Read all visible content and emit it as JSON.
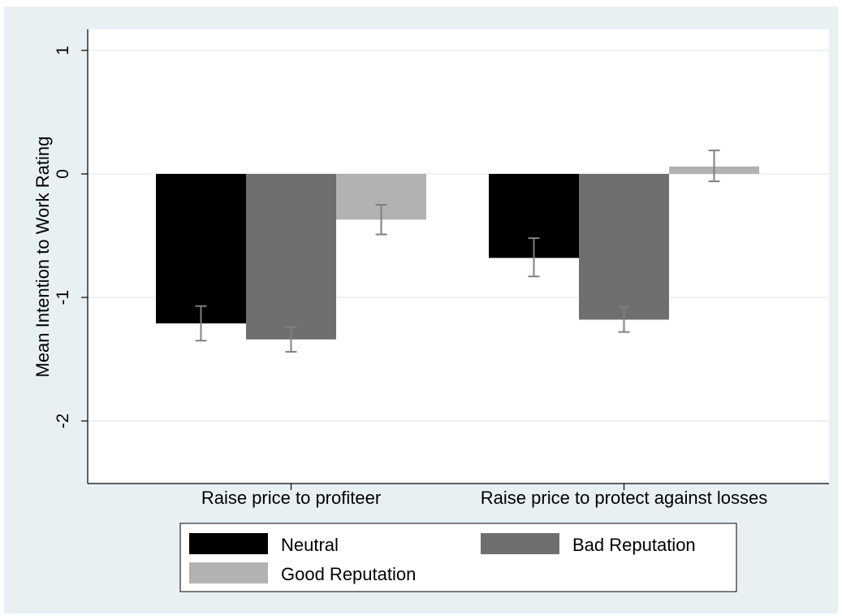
{
  "chart_data": {
    "type": "bar",
    "title": "",
    "xlabel": "",
    "ylabel": "Mean Intention to Work Rating",
    "ylim": [
      -2.5,
      1.2
    ],
    "yticks": [
      1,
      0,
      -1,
      -2
    ],
    "ytick_labels": [
      "1",
      "0",
      "-1",
      "-2"
    ],
    "grid": true,
    "legend_position": "bottom",
    "categories": [
      "Raise price to profiteer",
      "Raise price to protect against losses"
    ],
    "series": [
      {
        "name": "Neutral",
        "color": "#000000",
        "values": [
          -1.21,
          -0.68
        ],
        "error_low": [
          -1.35,
          -0.83
        ],
        "error_high": [
          -1.07,
          -0.52
        ]
      },
      {
        "name": "Bad Reputation",
        "color": "#6f6f6f",
        "values": [
          -1.34,
          -1.18
        ],
        "error_low": [
          -1.44,
          -1.28
        ],
        "error_high": [
          -1.24,
          -1.08
        ]
      },
      {
        "name": "Good Reputation",
        "color": "#b2b2b2",
        "values": [
          -0.37,
          0.06
        ],
        "error_low": [
          -0.49,
          -0.06
        ],
        "error_high": [
          -0.25,
          0.19
        ]
      }
    ],
    "error_bar_color": "#808080"
  }
}
